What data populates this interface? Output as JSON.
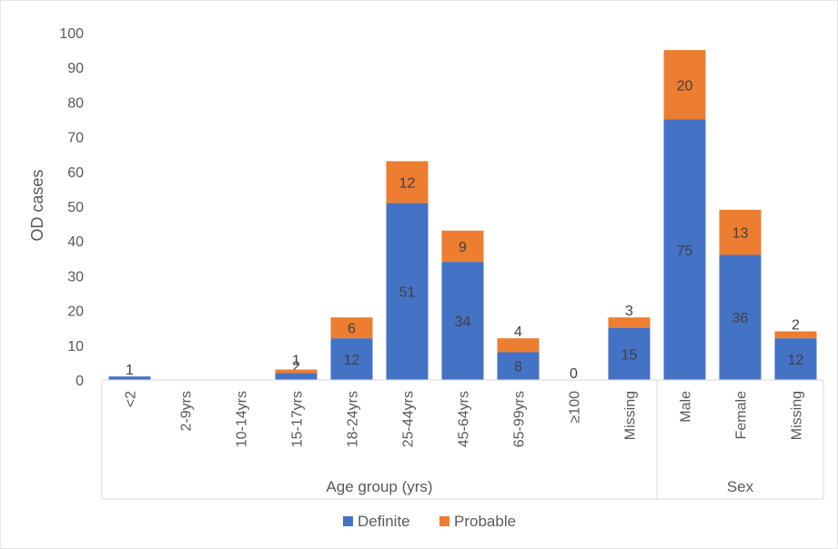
{
  "chart_data": {
    "type": "bar",
    "stacked": true,
    "ylabel": "OD cases",
    "ylim": [
      0,
      100
    ],
    "yticks": [
      0,
      10,
      20,
      30,
      40,
      50,
      60,
      70,
      80,
      90,
      100
    ],
    "grid": false,
    "legend_position": "bottom",
    "categories": [
      "<2",
      "2-9yrs",
      "10-14yrs",
      "15-17yrs",
      "18-24yrs",
      "25-44yrs",
      "45-64yrs",
      "65-99yrs",
      "≥100",
      "Missing",
      "Male",
      "Female",
      "Missing"
    ],
    "groups": [
      {
        "label": "Age group (yrs)",
        "start": 0,
        "end": 9
      },
      {
        "label": "Sex",
        "start": 10,
        "end": 12
      }
    ],
    "series": [
      {
        "name": "Definite",
        "color": "#4472C4",
        "values": [
          1,
          0,
          0,
          2,
          12,
          51,
          34,
          8,
          0,
          15,
          75,
          36,
          12
        ],
        "labels": [
          "1",
          "",
          "",
          "2",
          "12",
          "51",
          "34",
          "8",
          "0",
          "15",
          "75",
          "36",
          "12"
        ]
      },
      {
        "name": "Probable",
        "color": "#ED7D31",
        "values": [
          0,
          0,
          0,
          1,
          6,
          12,
          9,
          4,
          0,
          3,
          20,
          13,
          2
        ],
        "labels": [
          "",
          "",
          "",
          "1",
          "6",
          "12",
          "9",
          "4",
          "",
          "3",
          "20",
          "13",
          "2"
        ]
      }
    ]
  }
}
